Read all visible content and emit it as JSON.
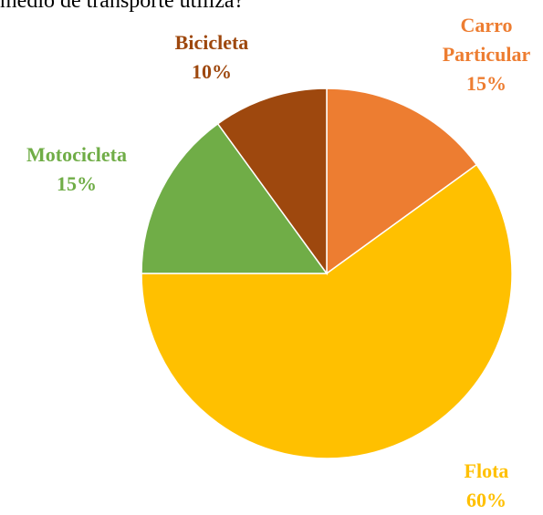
{
  "chart_data": {
    "type": "pie",
    "title": "medio de transporte utiliza?",
    "categories": [
      "Carro Particular",
      "Flota",
      "Motocicleta",
      "Bicicleta"
    ],
    "values": [
      15,
      60,
      15,
      10
    ],
    "value_labels": [
      "15%",
      "60%",
      "15%",
      "10%"
    ],
    "colors": [
      "#ED7D31",
      "#FFC000",
      "#70AD47",
      "#9E480E"
    ]
  }
}
